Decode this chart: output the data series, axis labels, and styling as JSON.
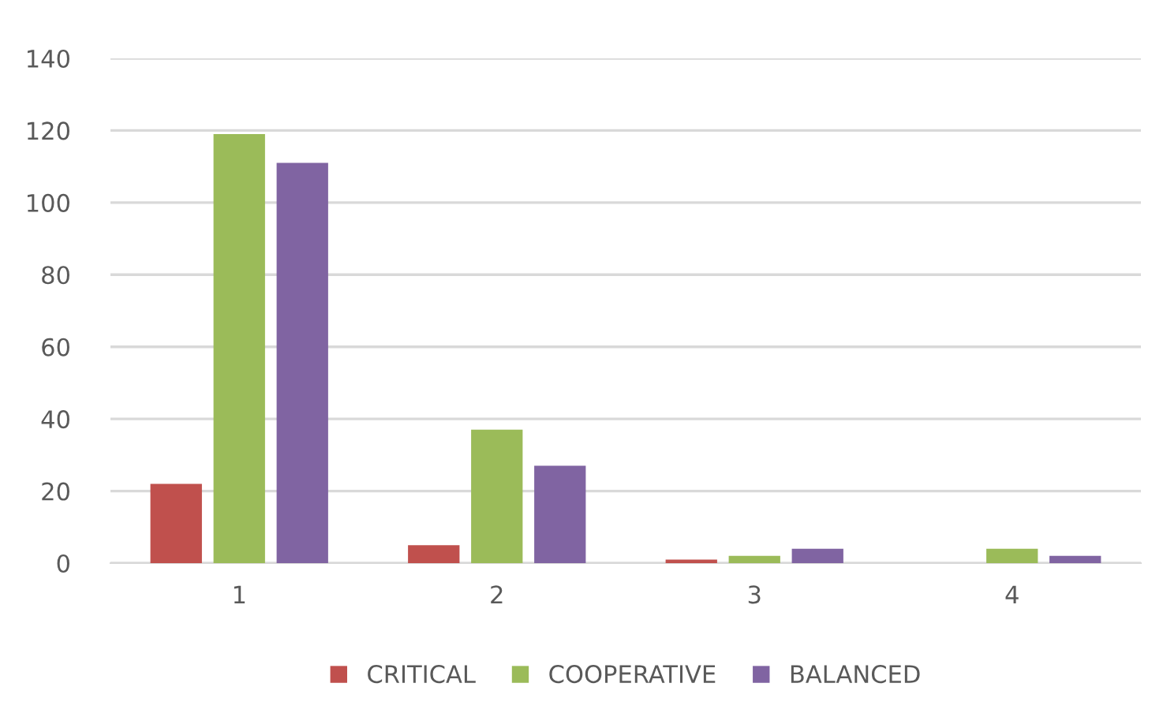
{
  "chart_data": {
    "type": "bar",
    "categories": [
      "1",
      "2",
      "3",
      "4"
    ],
    "series": [
      {
        "name": "CRITICAL",
        "color": "#c0504d",
        "values": [
          22,
          5,
          1,
          0
        ]
      },
      {
        "name": "COOPERATIVE",
        "color": "#9bbb59",
        "values": [
          119,
          37,
          2,
          4
        ]
      },
      {
        "name": "BALANCED",
        "color": "#8064a2",
        "values": [
          111,
          27,
          4,
          2
        ]
      }
    ],
    "ylim": [
      0,
      140
    ],
    "yticks": [
      0,
      20,
      40,
      60,
      80,
      100,
      120,
      140
    ],
    "grid": "y",
    "legend": "bottom"
  }
}
